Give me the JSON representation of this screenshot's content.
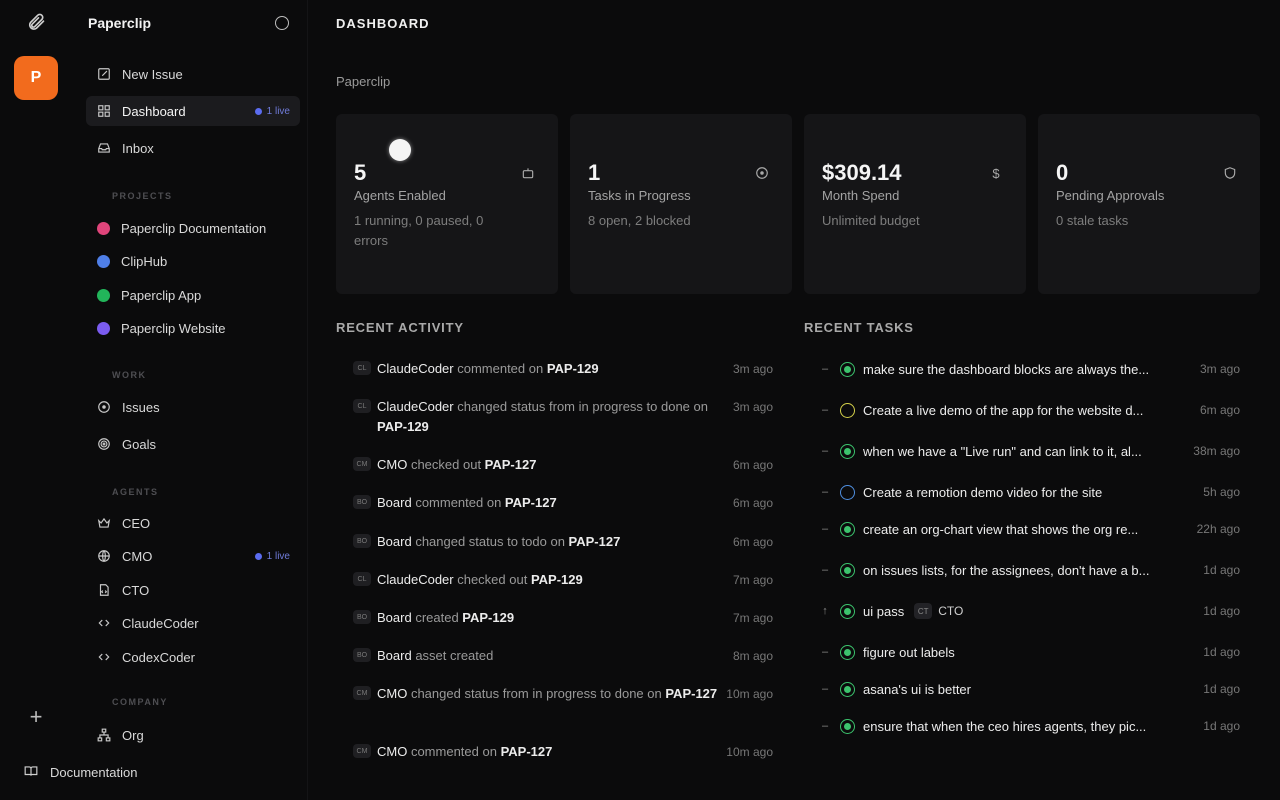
{
  "app": {
    "name": "Paperclip",
    "company_initial": "P"
  },
  "sidebar": {
    "new_issue": "New Issue",
    "dashboard": "Dashboard",
    "dashboard_live": "1 live",
    "inbox": "Inbox",
    "projects_label": "PROJECTS",
    "projects": [
      {
        "label": "Paperclip Documentation",
        "color": "#e0457b"
      },
      {
        "label": "ClipHub",
        "color": "#4f7fe8"
      },
      {
        "label": "Paperclip App",
        "color": "#22b55a"
      },
      {
        "label": "Paperclip Website",
        "color": "#7b5cf0"
      }
    ],
    "work_label": "WORK",
    "issues": "Issues",
    "goals": "Goals",
    "agents_label": "AGENTS",
    "agents": [
      {
        "label": "CEO",
        "icon": "crown-icon"
      },
      {
        "label": "CMO",
        "icon": "globe-icon",
        "live": "1 live"
      },
      {
        "label": "CTO",
        "icon": "file-code-icon"
      },
      {
        "label": "ClaudeCoder",
        "icon": "code-icon"
      },
      {
        "label": "CodexCoder",
        "icon": "code-icon"
      }
    ],
    "company_label": "COMPANY",
    "org": "Org",
    "documentation": "Documentation"
  },
  "header": {
    "title": "DASHBOARD",
    "breadcrumb": "Paperclip"
  },
  "cards": [
    {
      "value": "5",
      "label": "Agents Enabled",
      "sub": "1 running, 0 paused, 0 errors",
      "icon": "bot-icon"
    },
    {
      "value": "1",
      "label": "Tasks in Progress",
      "sub": "8 open, 2 blocked",
      "icon": "circle-dot-icon"
    },
    {
      "value": "$309.14",
      "label": "Month Spend",
      "sub": "Unlimited budget",
      "icon": "dollar-icon"
    },
    {
      "value": "0",
      "label": "Pending Approvals",
      "sub": "0 stale tasks",
      "icon": "shield-icon"
    }
  ],
  "activity": {
    "title": "RECENT ACTIVITY",
    "items": [
      {
        "av": "CL",
        "who": "ClaudeCoder",
        "action": " commented on ",
        "ref": "PAP-129",
        "time": "3m ago"
      },
      {
        "av": "CL",
        "who": "ClaudeCoder",
        "action": " changed status from in progress to done on ",
        "ref": "PAP-129",
        "time": "3m ago"
      },
      {
        "av": "CM",
        "who": "CMO",
        "action": " checked out ",
        "ref": "PAP-127",
        "time": "6m ago"
      },
      {
        "av": "BO",
        "who": "Board",
        "action": " commented on ",
        "ref": "PAP-127",
        "time": "6m ago"
      },
      {
        "av": "BO",
        "who": "Board",
        "action": " changed status to todo on ",
        "ref": "PAP-127",
        "time": "6m ago"
      },
      {
        "av": "CL",
        "who": "ClaudeCoder",
        "action": " checked out ",
        "ref": "PAP-129",
        "time": "7m ago"
      },
      {
        "av": "BO",
        "who": "Board",
        "action": " created ",
        "ref": "PAP-129",
        "time": "7m ago"
      },
      {
        "av": "BO",
        "who": "Board",
        "action": " asset created",
        "ref": "",
        "time": "8m ago"
      },
      {
        "av": "CM",
        "who": "CMO",
        "action": " changed status from in progress to done on ",
        "ref": "PAP-127",
        "time": "10m ago"
      },
      {
        "av": "CM",
        "who": "CMO",
        "action": " commented on ",
        "ref": "PAP-127",
        "time": "10m ago"
      }
    ]
  },
  "tasks": {
    "title": "RECENT TASKS",
    "items": [
      {
        "title": "make sure the dashboard blocks are always the...",
        "time": "3m ago",
        "status": "done",
        "priority": "–"
      },
      {
        "title": "Create a live demo of the app for the website d...",
        "time": "6m ago",
        "status": "todo",
        "priority": "–"
      },
      {
        "title": "when we have a \"Live run\" and can link to it, al...",
        "time": "38m ago",
        "status": "done",
        "priority": "–"
      },
      {
        "title": "Create a remotion demo video for the site",
        "time": "5h ago",
        "status": "open",
        "priority": "–"
      },
      {
        "title": "create an org-chart view that shows the org re...",
        "time": "22h ago",
        "status": "done",
        "priority": "–"
      },
      {
        "title": "on issues lists, for the assignees, don't have a b...",
        "time": "1d ago",
        "status": "done",
        "priority": "–"
      },
      {
        "title": "ui pass",
        "time": "1d ago",
        "status": "done",
        "priority": "↑",
        "assignee": "CTO",
        "assignee_av": "CT"
      },
      {
        "title": "figure out labels",
        "time": "1d ago",
        "status": "done",
        "priority": "–"
      },
      {
        "title": "asana's ui is better",
        "time": "1d ago",
        "status": "done",
        "priority": "–"
      },
      {
        "title": "ensure that when the ceo hires agents, they pic...",
        "time": "1d ago",
        "status": "done",
        "priority": "–"
      }
    ]
  }
}
